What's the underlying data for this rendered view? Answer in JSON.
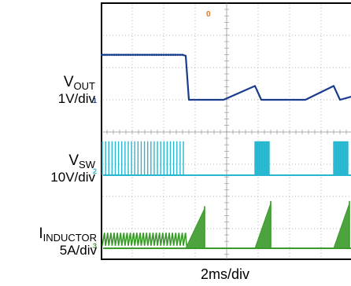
{
  "chart_data": {
    "type": "line",
    "title": "",
    "timebase": "2ms/div",
    "grid": true,
    "xlim_div": [
      -4,
      4
    ],
    "marker_top": "0",
    "series": [
      {
        "key": "vout",
        "name_main": "V",
        "name_sub": "OUT",
        "scale": "1V/div",
        "channel_marker": "1",
        "color": "#1a3c8c",
        "description_points": [
          [
            -4.0,
            4.3
          ],
          [
            -1.4,
            4.3
          ],
          [
            -1.3,
            4.25
          ],
          [
            -1.2,
            1.7
          ],
          [
            -0.6,
            1.7
          ],
          [
            -0.1,
            1.7
          ],
          [
            0.9,
            2.5
          ],
          [
            1.1,
            1.7
          ],
          [
            2.5,
            1.7
          ],
          [
            3.4,
            2.5
          ],
          [
            3.6,
            1.7
          ],
          [
            4.0,
            1.9
          ]
        ]
      },
      {
        "key": "vsw",
        "name_main": "V",
        "name_sub": "SW",
        "scale": "10V/div",
        "channel_marker": "2",
        "color": "#27b7d0",
        "high_level_div": 1.8,
        "low_level_div": 0.0,
        "bursts": [
          {
            "start": -3.95,
            "end": -1.3,
            "pulse_period": 0.103
          },
          {
            "start": 0.9,
            "end": 1.35,
            "pulse_period": 0.03
          },
          {
            "start": 3.4,
            "end": 3.85,
            "pulse_period": 0.03
          }
        ]
      },
      {
        "key": "inductor",
        "name_main": "I",
        "name_sub": "INDUCTOR",
        "scale": "5A/div",
        "channel_marker": "3",
        "color": "#3a9a2a",
        "ripple": {
          "start": -3.95,
          "end": -1.3,
          "min_div": 0.15,
          "max_div": 0.9,
          "period": 0.103
        },
        "ramps": [
          {
            "start": -1.3,
            "end": -0.7,
            "peak_div": 2.3
          },
          {
            "start": 0.9,
            "end": 1.4,
            "peak_div": 2.6
          },
          {
            "start": 3.4,
            "end": 3.9,
            "peak_div": 2.6
          }
        ]
      }
    ]
  },
  "labels": {
    "vout": {
      "main": "V",
      "sub": "OUT",
      "scale": "1V/div"
    },
    "vsw": {
      "main": "V",
      "sub": "SW",
      "scale": "10V/div"
    },
    "inductor": {
      "main": "I",
      "sub": "INDUCTOR",
      "scale": "5A/div"
    },
    "timebase": "2ms/div"
  },
  "colors": {
    "frame": "#000000",
    "grid": "#9a9a9a",
    "trigger_marker": "#e07820",
    "vout": "#1a3c8c",
    "vsw": "#27b7d0",
    "inductor": "#3a9a2a"
  }
}
